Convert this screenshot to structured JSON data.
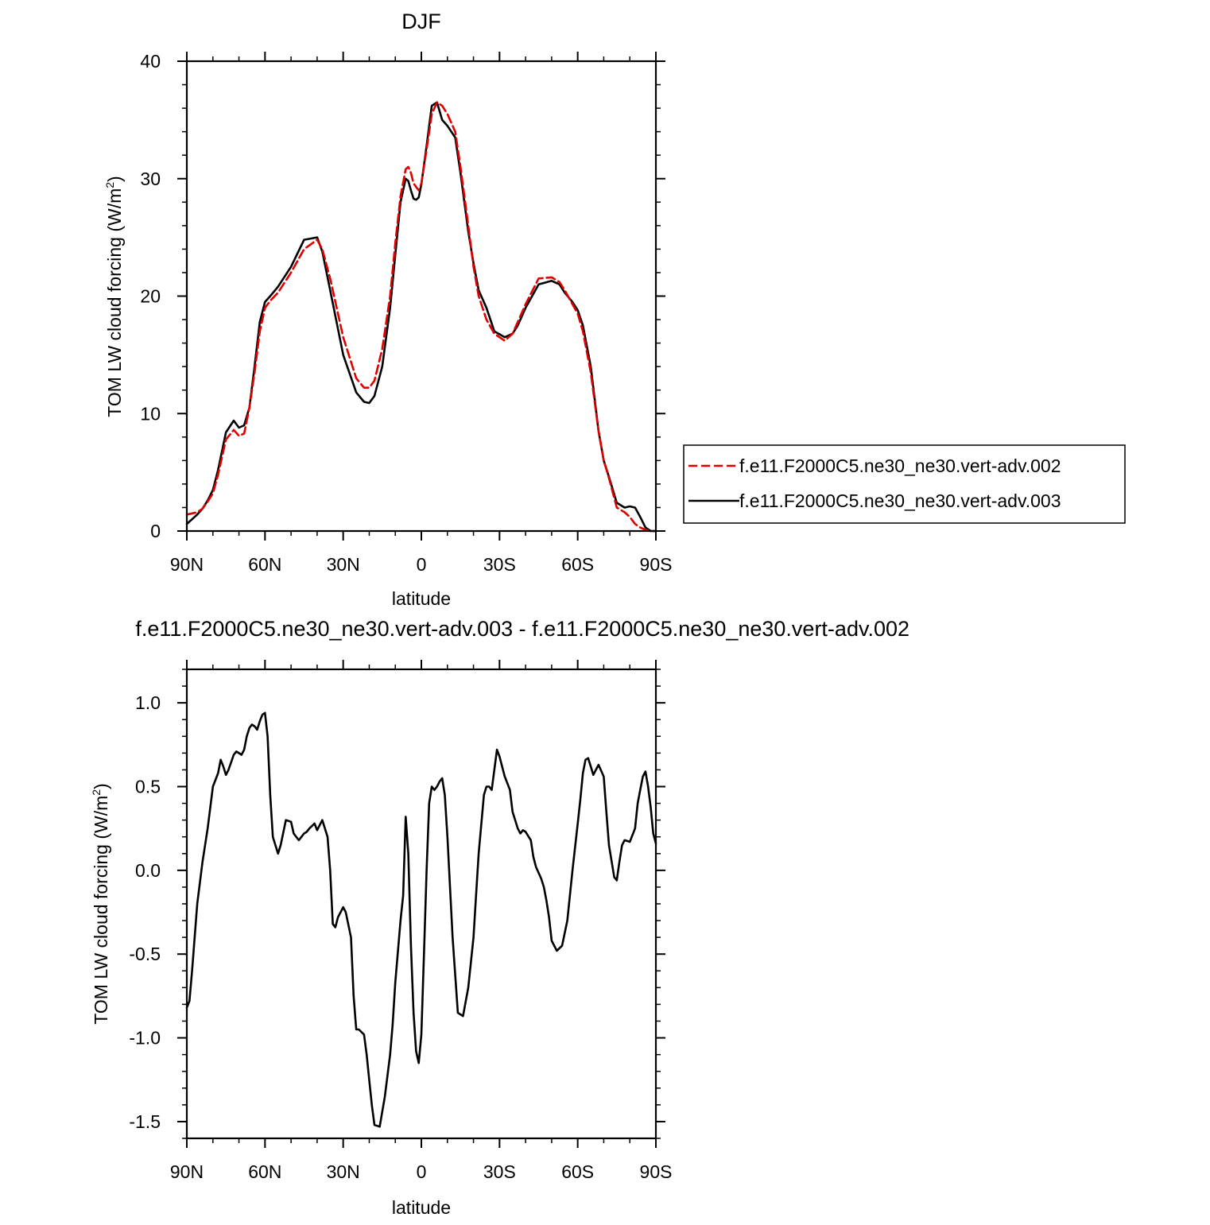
{
  "chart_data": [
    {
      "type": "line",
      "title": "DJF",
      "xlabel": "latitude",
      "ylabel": "TOM LW cloud forcing (W/m",
      "ylabel_sup": "2",
      "ylabel_close": ")",
      "xlim": [
        90,
        -90
      ],
      "ylim": [
        0,
        40
      ],
      "x_ticks": [
        90,
        60,
        30,
        0,
        -30,
        -60,
        -90
      ],
      "x_tick_labels": [
        "90N",
        "60N",
        "30N",
        "0",
        "30S",
        "60S",
        "90S"
      ],
      "y_ticks": [
        0,
        10,
        20,
        30,
        40
      ],
      "y_tick_labels": [
        "0",
        "10",
        "20",
        "30",
        "40"
      ],
      "legend_position": "right",
      "series": [
        {
          "name": "f.e11.F2000C5.ne30_ne30.vert-adv.002",
          "color": "#e00000",
          "style": "dashed",
          "x": [
            90,
            86,
            84,
            82,
            80,
            78,
            75,
            72,
            70,
            68,
            66,
            64,
            62,
            60,
            58,
            55,
            50,
            45,
            40,
            38,
            35,
            30,
            25,
            22,
            20,
            18,
            15,
            12,
            10,
            8,
            6,
            5,
            4,
            3,
            2,
            1,
            0,
            -2,
            -4,
            -6,
            -8,
            -10,
            -13,
            -15,
            -18,
            -20,
            -22,
            -25,
            -28,
            -32,
            -35,
            -37,
            -40,
            -45,
            -50,
            -53,
            -55,
            -58,
            -60,
            -62,
            -65,
            -68,
            -70,
            -72,
            -75,
            -78,
            -80,
            -82,
            -84,
            -86,
            -88,
            -90
          ],
          "y": [
            1.4,
            1.6,
            1.9,
            2.5,
            3.2,
            4.8,
            7.8,
            8.6,
            8.1,
            8.3,
            10.5,
            13.5,
            17.0,
            19.0,
            19.6,
            20.3,
            22.0,
            24.0,
            24.8,
            24.0,
            21.5,
            16.5,
            13.0,
            12.2,
            12.2,
            12.8,
            15.5,
            20.0,
            24.5,
            28.5,
            30.8,
            31.0,
            30.5,
            29.6,
            29.3,
            29.0,
            29.6,
            32.5,
            35.5,
            36.5,
            36.2,
            35.5,
            34.0,
            31.0,
            26.0,
            22.5,
            20.0,
            18.0,
            16.8,
            16.2,
            16.8,
            17.8,
            19.3,
            21.5,
            21.6,
            21.2,
            20.5,
            19.3,
            18.5,
            17.0,
            13.5,
            8.5,
            6.0,
            4.5,
            2.0,
            1.6,
            1.2,
            0.6,
            0.3,
            0.1,
            0.0,
            0.0
          ]
        },
        {
          "name": "f.e11.F2000C5.ne30_ne30.vert-adv.003",
          "color": "#000000",
          "style": "solid",
          "x": [
            90,
            86,
            84,
            82,
            80,
            78,
            75,
            72,
            70,
            68,
            66,
            64,
            62,
            60,
            58,
            55,
            50,
            45,
            40,
            38,
            35,
            30,
            25,
            22,
            20,
            18,
            15,
            12,
            10,
            8,
            6,
            5,
            4,
            3,
            2,
            1,
            0,
            -2,
            -4,
            -6,
            -8,
            -10,
            -13,
            -15,
            -18,
            -20,
            -22,
            -25,
            -28,
            -32,
            -35,
            -37,
            -40,
            -45,
            -50,
            -53,
            -55,
            -58,
            -60,
            -62,
            -65,
            -68,
            -70,
            -72,
            -75,
            -78,
            -80,
            -82,
            -84,
            -86,
            -88,
            -90
          ],
          "y": [
            0.6,
            1.4,
            1.9,
            2.6,
            3.5,
            5.2,
            8.4,
            9.4,
            8.8,
            9.0,
            10.5,
            14.0,
            17.8,
            19.5,
            20.0,
            20.8,
            22.5,
            24.8,
            25.0,
            23.8,
            20.5,
            15.0,
            11.8,
            11.0,
            10.9,
            11.5,
            14.0,
            19.0,
            23.5,
            28.0,
            30.0,
            29.8,
            29.0,
            28.3,
            28.2,
            28.4,
            29.5,
            32.8,
            36.2,
            36.5,
            35.0,
            34.5,
            33.5,
            30.5,
            25.5,
            22.8,
            20.5,
            19.0,
            17.0,
            16.5,
            16.8,
            17.5,
            19.0,
            21.0,
            21.3,
            21.0,
            20.3,
            19.5,
            18.8,
            17.5,
            14.0,
            8.5,
            6.0,
            4.6,
            2.4,
            2.0,
            2.1,
            2.0,
            1.2,
            0.3,
            0.0,
            0.0
          ]
        }
      ]
    },
    {
      "type": "line",
      "title": "f.e11.F2000C5.ne30_ne30.vert-adv.003 - f.e11.F2000C5.ne30_ne30.vert-adv.002",
      "xlabel": "latitude",
      "ylabel": "TOM LW cloud forcing (W/m",
      "ylabel_sup": "2",
      "ylabel_close": ")",
      "xlim": [
        90,
        -90
      ],
      "ylim": [
        -1.6,
        1.2
      ],
      "x_ticks": [
        90,
        60,
        30,
        0,
        -30,
        -60,
        -90
      ],
      "x_tick_labels": [
        "90N",
        "60N",
        "30N",
        "0",
        "30S",
        "60S",
        "90S"
      ],
      "y_ticks": [
        1.0,
        0.5,
        0.0,
        -0.5,
        -1.0,
        -1.5
      ],
      "y_tick_labels": [
        "1.0",
        "0.5",
        "0.0",
        "-0.5",
        "-1.0",
        "-1.5"
      ],
      "series": [
        {
          "color": "#000000",
          "style": "solid",
          "x": [
            90,
            89,
            88,
            86,
            84,
            82,
            80,
            78,
            77,
            76,
            75,
            74,
            72,
            71,
            70,
            69,
            68,
            67,
            66,
            65,
            64,
            63,
            62,
            61,
            60,
            59,
            58,
            57,
            55,
            54,
            52,
            50,
            49,
            47,
            46,
            45,
            44,
            43,
            41,
            40,
            38,
            36,
            35,
            34,
            33,
            32,
            30,
            29,
            27,
            26,
            25,
            24,
            22,
            21,
            20,
            19,
            18,
            16,
            14,
            12,
            11,
            10,
            8,
            7,
            6,
            5,
            4,
            3,
            2,
            1,
            0,
            -1,
            -2,
            -3,
            -4,
            -5,
            -6,
            -7,
            -8,
            -9,
            -10,
            -12,
            -14,
            -16,
            -18,
            -20,
            -21,
            -22,
            -24,
            -25,
            -26,
            -27,
            -28,
            -29,
            -30,
            -32,
            -33,
            -34,
            -35,
            -36,
            -37,
            -38,
            -39,
            -40,
            -42,
            -43,
            -44,
            -46,
            -47,
            -48,
            -49,
            -50,
            -52,
            -54,
            -56,
            -58,
            -60,
            -61,
            -62,
            -63,
            -64,
            -65,
            -66,
            -67,
            -68,
            -70,
            -71,
            -72,
            -74,
            -75,
            -76,
            -77,
            -78,
            -80,
            -82,
            -83,
            -84,
            -85,
            -86,
            -87,
            -88,
            -89,
            -90
          ],
          "y": [
            -0.82,
            -0.78,
            -0.6,
            -0.2,
            0.05,
            0.25,
            0.5,
            0.58,
            0.66,
            0.62,
            0.57,
            0.6,
            0.69,
            0.71,
            0.7,
            0.69,
            0.72,
            0.8,
            0.85,
            0.87,
            0.86,
            0.84,
            0.89,
            0.93,
            0.94,
            0.8,
            0.45,
            0.2,
            0.1,
            0.15,
            0.3,
            0.29,
            0.22,
            0.18,
            0.2,
            0.22,
            0.23,
            0.25,
            0.28,
            0.24,
            0.3,
            0.2,
            0.0,
            -0.32,
            -0.34,
            -0.28,
            -0.22,
            -0.25,
            -0.4,
            -0.75,
            -0.95,
            -0.95,
            -0.98,
            -1.1,
            -1.25,
            -1.4,
            -1.52,
            -1.53,
            -1.35,
            -1.1,
            -0.92,
            -0.67,
            -0.3,
            -0.15,
            0.32,
            0.1,
            -0.45,
            -0.85,
            -1.08,
            -1.15,
            -0.98,
            -0.5,
            0.0,
            0.4,
            0.5,
            0.48,
            0.5,
            0.53,
            0.55,
            0.45,
            0.2,
            -0.4,
            -0.85,
            -0.87,
            -0.7,
            -0.4,
            -0.15,
            0.1,
            0.45,
            0.5,
            0.5,
            0.48,
            0.6,
            0.72,
            0.68,
            0.56,
            0.52,
            0.48,
            0.35,
            0.3,
            0.25,
            0.22,
            0.24,
            0.23,
            0.18,
            0.08,
            0.02,
            -0.05,
            -0.1,
            -0.18,
            -0.28,
            -0.42,
            -0.48,
            -0.45,
            -0.3,
            0.0,
            0.28,
            0.42,
            0.58,
            0.66,
            0.67,
            0.62,
            0.57,
            0.6,
            0.63,
            0.56,
            0.35,
            0.15,
            -0.04,
            -0.06,
            0.05,
            0.15,
            0.18,
            0.17,
            0.25,
            0.4,
            0.48,
            0.56,
            0.59,
            0.5,
            0.38,
            0.22,
            0.16
          ]
        }
      ]
    }
  ]
}
